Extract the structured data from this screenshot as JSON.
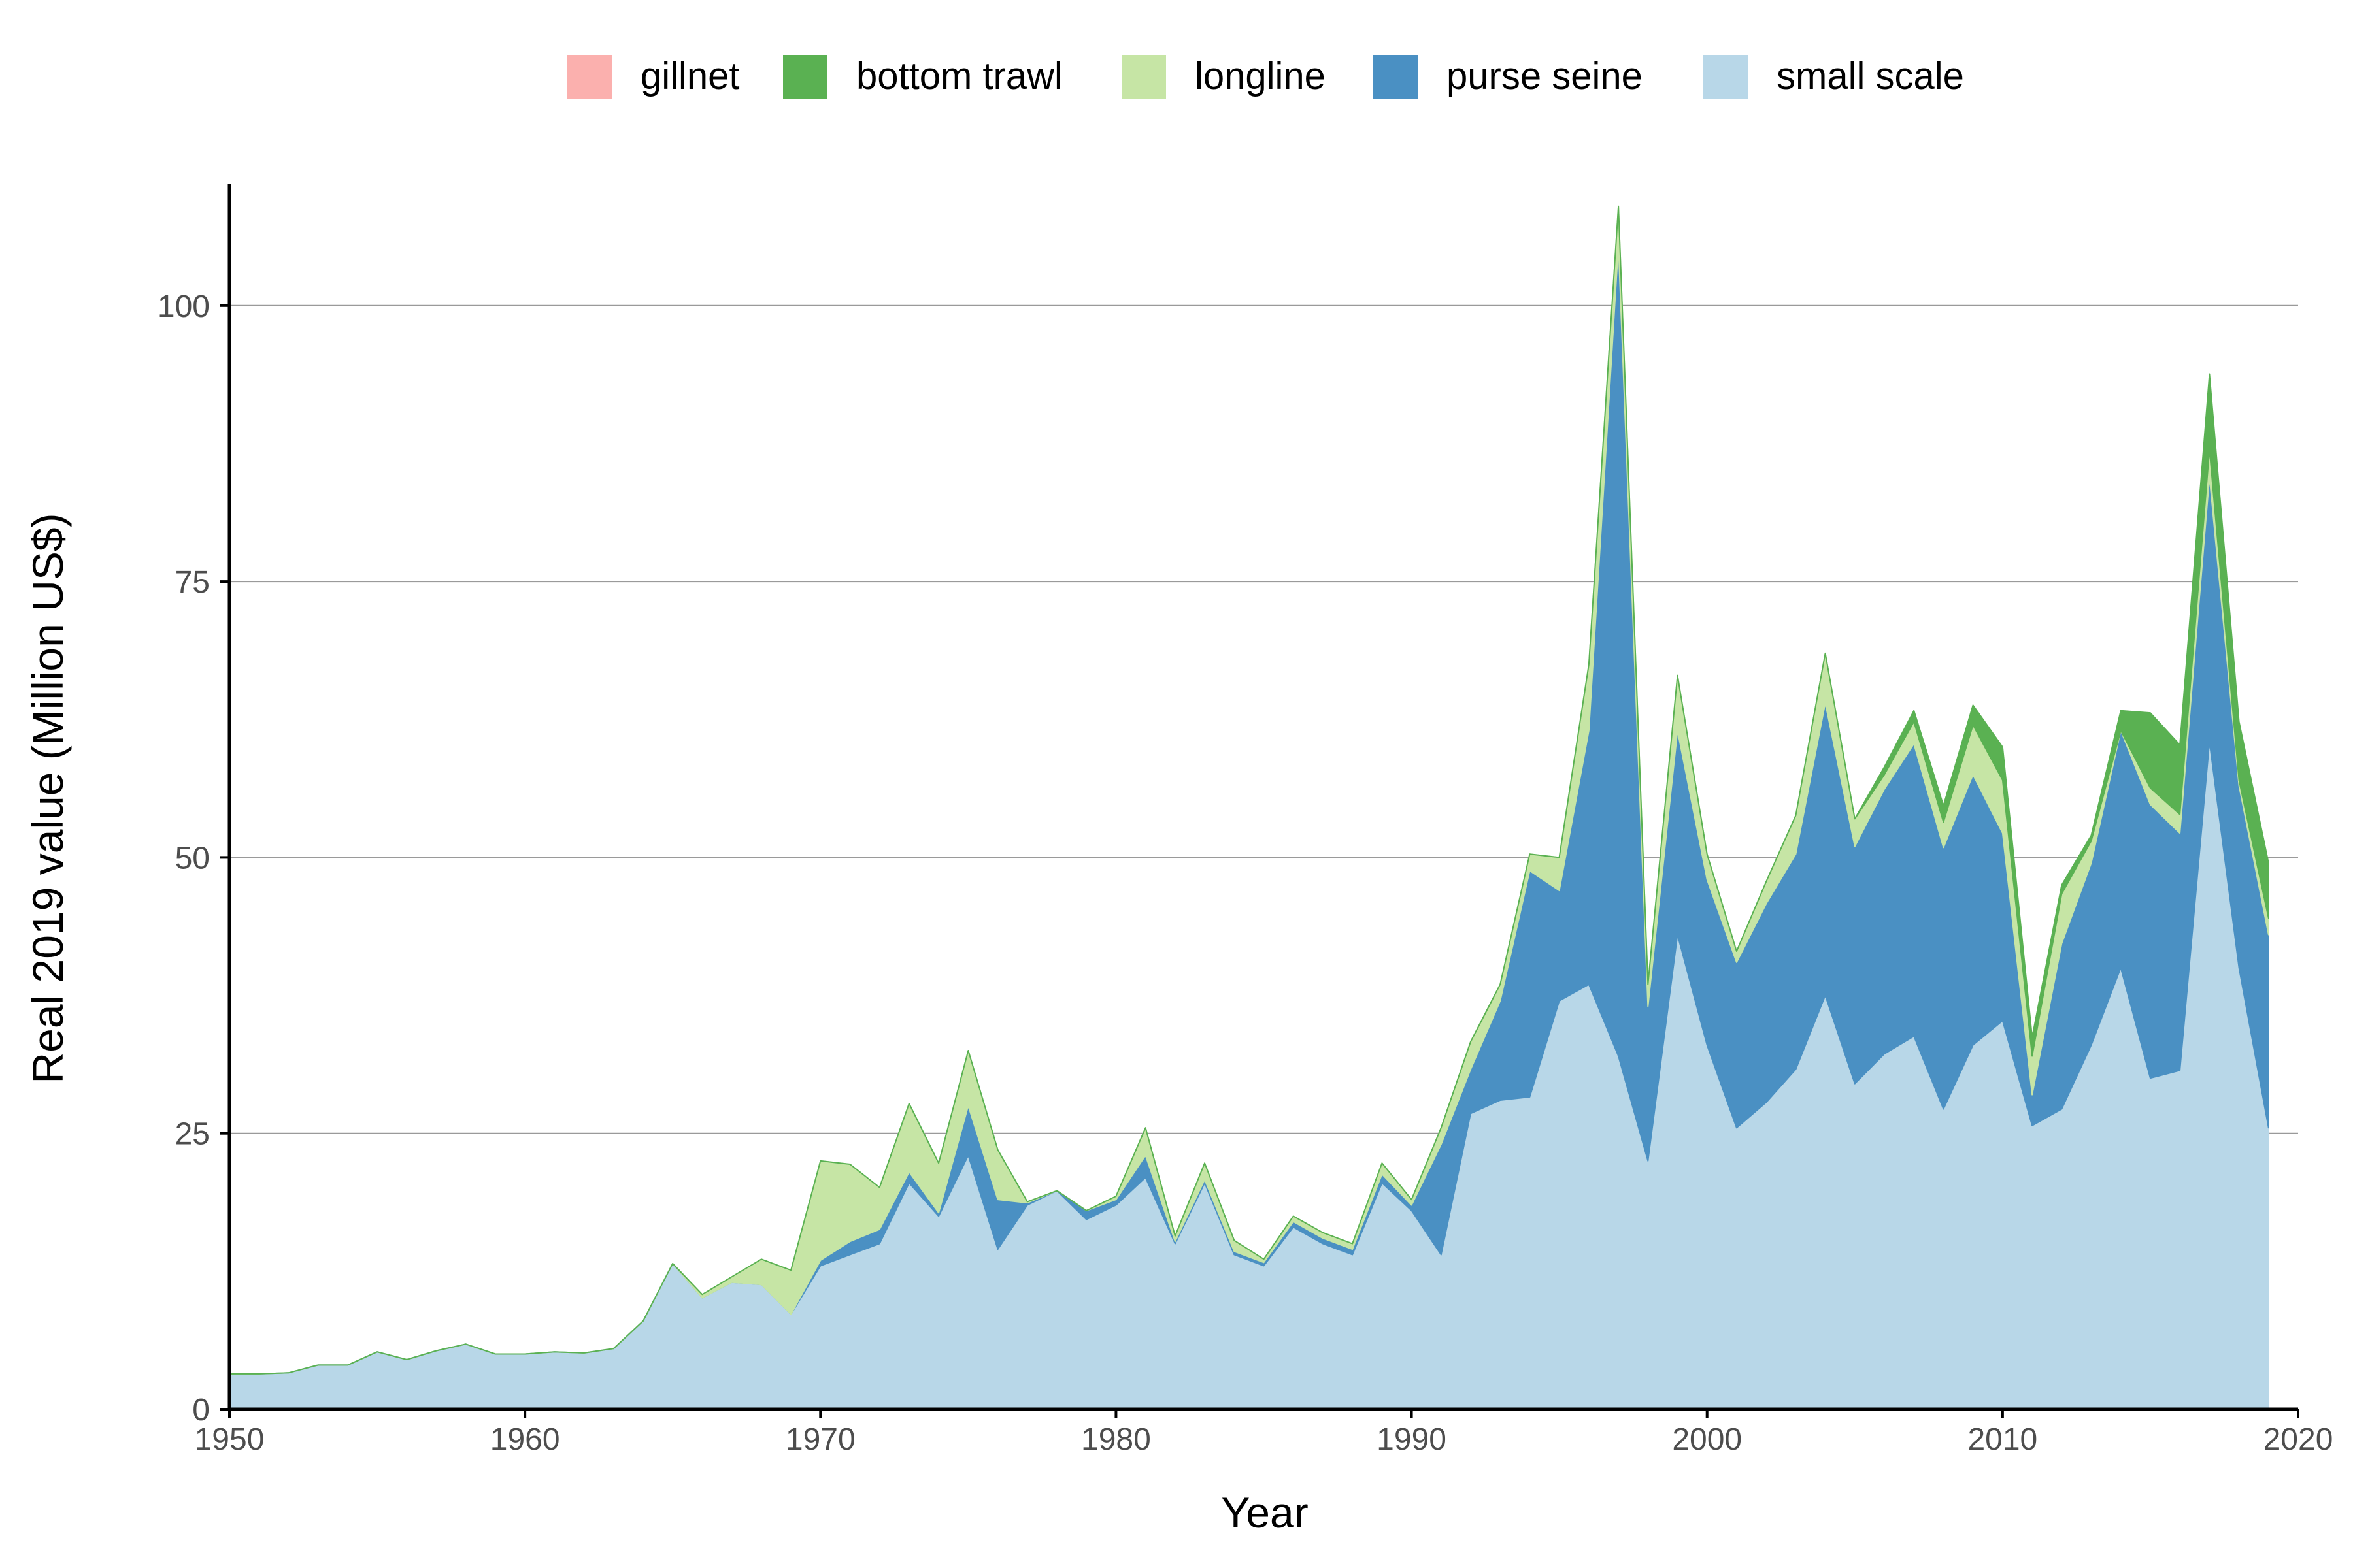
{
  "chart_data": {
    "type": "area",
    "stacked": true,
    "xlabel": "Year",
    "ylabel": "Real 2019 value (Million US$)",
    "xlim": [
      1950,
      2020
    ],
    "ylim": [
      0,
      111
    ],
    "x_ticks": [
      1950,
      1960,
      1970,
      1980,
      1990,
      2000,
      2010,
      2020
    ],
    "y_ticks": [
      0,
      25,
      50,
      75,
      100
    ],
    "y_grid": true,
    "legend_position": "top",
    "legend": [
      "gillnet",
      "bottom trawl",
      "longline",
      "purse seine",
      "small scale"
    ],
    "stack_order_bottom_to_top": [
      "small scale",
      "purse seine",
      "longline",
      "bottom trawl",
      "gillnet"
    ],
    "x": [
      1950,
      1951,
      1952,
      1953,
      1954,
      1955,
      1956,
      1957,
      1958,
      1959,
      1960,
      1961,
      1962,
      1963,
      1964,
      1965,
      1966,
      1967,
      1968,
      1969,
      1970,
      1971,
      1972,
      1973,
      1974,
      1975,
      1976,
      1977,
      1978,
      1979,
      1980,
      1981,
      1982,
      1983,
      1984,
      1985,
      1986,
      1987,
      1988,
      1989,
      1990,
      1991,
      1992,
      1993,
      1994,
      1995,
      1996,
      1997,
      1998,
      1999,
      2000,
      2001,
      2002,
      2003,
      2004,
      2005,
      2006,
      2007,
      2008,
      2009,
      2010,
      2011,
      2012,
      2013,
      2014,
      2015,
      2016,
      2017,
      2018,
      2019
    ],
    "series": [
      {
        "name": "small scale",
        "color": "#b8d7e8",
        "values": [
          3.2,
          3.2,
          3.3,
          4.0,
          4.0,
          5.2,
          4.5,
          5.3,
          5.9,
          5.0,
          5.0,
          5.2,
          5.1,
          5.5,
          8.0,
          13.2,
          10.1,
          11.5,
          11.3,
          8.6,
          13.0,
          14.0,
          15.0,
          20.5,
          17.5,
          23.0,
          14.5,
          18.5,
          19.8,
          17.2,
          18.5,
          21.0,
          15.0,
          20.5,
          14.0,
          13.0,
          16.5,
          15.0,
          14.0,
          20.5,
          18.0,
          14.0,
          26.8,
          28.0,
          28.3,
          37.0,
          38.5,
          32.0,
          22.5,
          43.0,
          33.0,
          25.5,
          27.8,
          30.8,
          37.5,
          29.5,
          32.2,
          33.8,
          27.2,
          33.0,
          35.2,
          25.7,
          27.2,
          33.0,
          40.0,
          30.0,
          30.7,
          60.5,
          40.0,
          25.5
        ]
      },
      {
        "name": "purse seine",
        "color": "#4a90c3",
        "values": [
          0,
          0,
          0,
          0,
          0,
          0,
          0,
          0,
          0,
          0,
          0,
          0,
          0,
          0,
          0,
          0,
          0,
          0,
          0,
          0,
          0.5,
          1.2,
          1.3,
          1.0,
          0.3,
          4.5,
          4.5,
          0.2,
          0,
          0.8,
          0.5,
          2.0,
          0.2,
          0.3,
          0.3,
          0.3,
          0.5,
          0.5,
          0.5,
          0.8,
          0.5,
          10.0,
          4.0,
          9.0,
          20.5,
          10.0,
          23.0,
          73.5,
          14.0,
          18.5,
          15.0,
          15.0,
          18.0,
          19.5,
          26.5,
          21.5,
          24.0,
          26.5,
          23.7,
          24.5,
          17.0,
          2.8,
          15.0,
          16.5,
          21.5,
          24.8,
          21.5,
          24.0,
          16.5,
          17.5
        ]
      },
      {
        "name": "longline",
        "color": "#c6e5a5",
        "values": [
          0,
          0,
          0,
          0,
          0,
          0,
          0,
          0,
          0,
          0,
          0,
          0,
          0,
          0,
          0,
          0,
          0.3,
          0.5,
          2.3,
          4.0,
          9.0,
          7.0,
          3.8,
          6.2,
          4.5,
          5.0,
          4.5,
          0.1,
          0,
          0,
          0.3,
          2.5,
          0.5,
          1.5,
          1.0,
          0.3,
          0.5,
          0.5,
          0.5,
          1.0,
          0.5,
          1.5,
          2.5,
          1.5,
          1.5,
          3.0,
          6.0,
          3.5,
          2.0,
          5.0,
          2.3,
          1.0,
          2.0,
          3.5,
          4.5,
          2.5,
          1.3,
          2.0,
          2.3,
          4.5,
          4.8,
          3.5,
          4.5,
          2.0,
          0,
          1.5,
          1.7,
          2.5,
          0.5,
          1.5
        ]
      },
      {
        "name": "bottom trawl",
        "color": "#5ab152",
        "values": [
          0,
          0,
          0,
          0,
          0,
          0,
          0,
          0,
          0,
          0,
          0,
          0,
          0,
          0,
          0,
          0,
          0,
          0,
          0,
          0,
          0,
          0,
          0,
          0,
          0,
          0,
          0,
          0,
          0,
          0,
          0,
          0,
          0,
          0,
          0,
          0,
          0,
          0,
          0,
          0,
          0,
          0,
          0,
          0,
          0,
          0,
          0,
          0,
          0,
          0,
          0,
          0,
          0,
          0,
          0,
          0,
          0.7,
          1.0,
          1.5,
          1.8,
          3.0,
          1.7,
          0.8,
          0.5,
          1.8,
          6.8,
          6.3,
          6.8,
          5.3,
          5.0
        ]
      },
      {
        "name": "gillnet",
        "color": "#fbb0ae",
        "values": [
          0,
          0,
          0,
          0,
          0,
          0,
          0,
          0,
          0,
          0,
          0,
          0,
          0,
          0,
          0,
          0,
          0,
          0,
          0,
          0,
          0,
          0,
          0,
          0,
          0,
          0,
          0,
          0,
          0,
          0,
          0,
          0,
          0,
          0,
          0,
          0,
          0,
          0,
          0,
          0,
          0,
          0,
          0,
          0,
          0,
          0,
          0,
          0,
          0,
          0,
          0,
          0,
          0,
          0,
          0,
          0,
          0,
          0,
          0,
          0,
          0,
          0,
          0,
          0,
          0,
          0,
          0,
          0,
          0,
          0
        ]
      }
    ]
  }
}
